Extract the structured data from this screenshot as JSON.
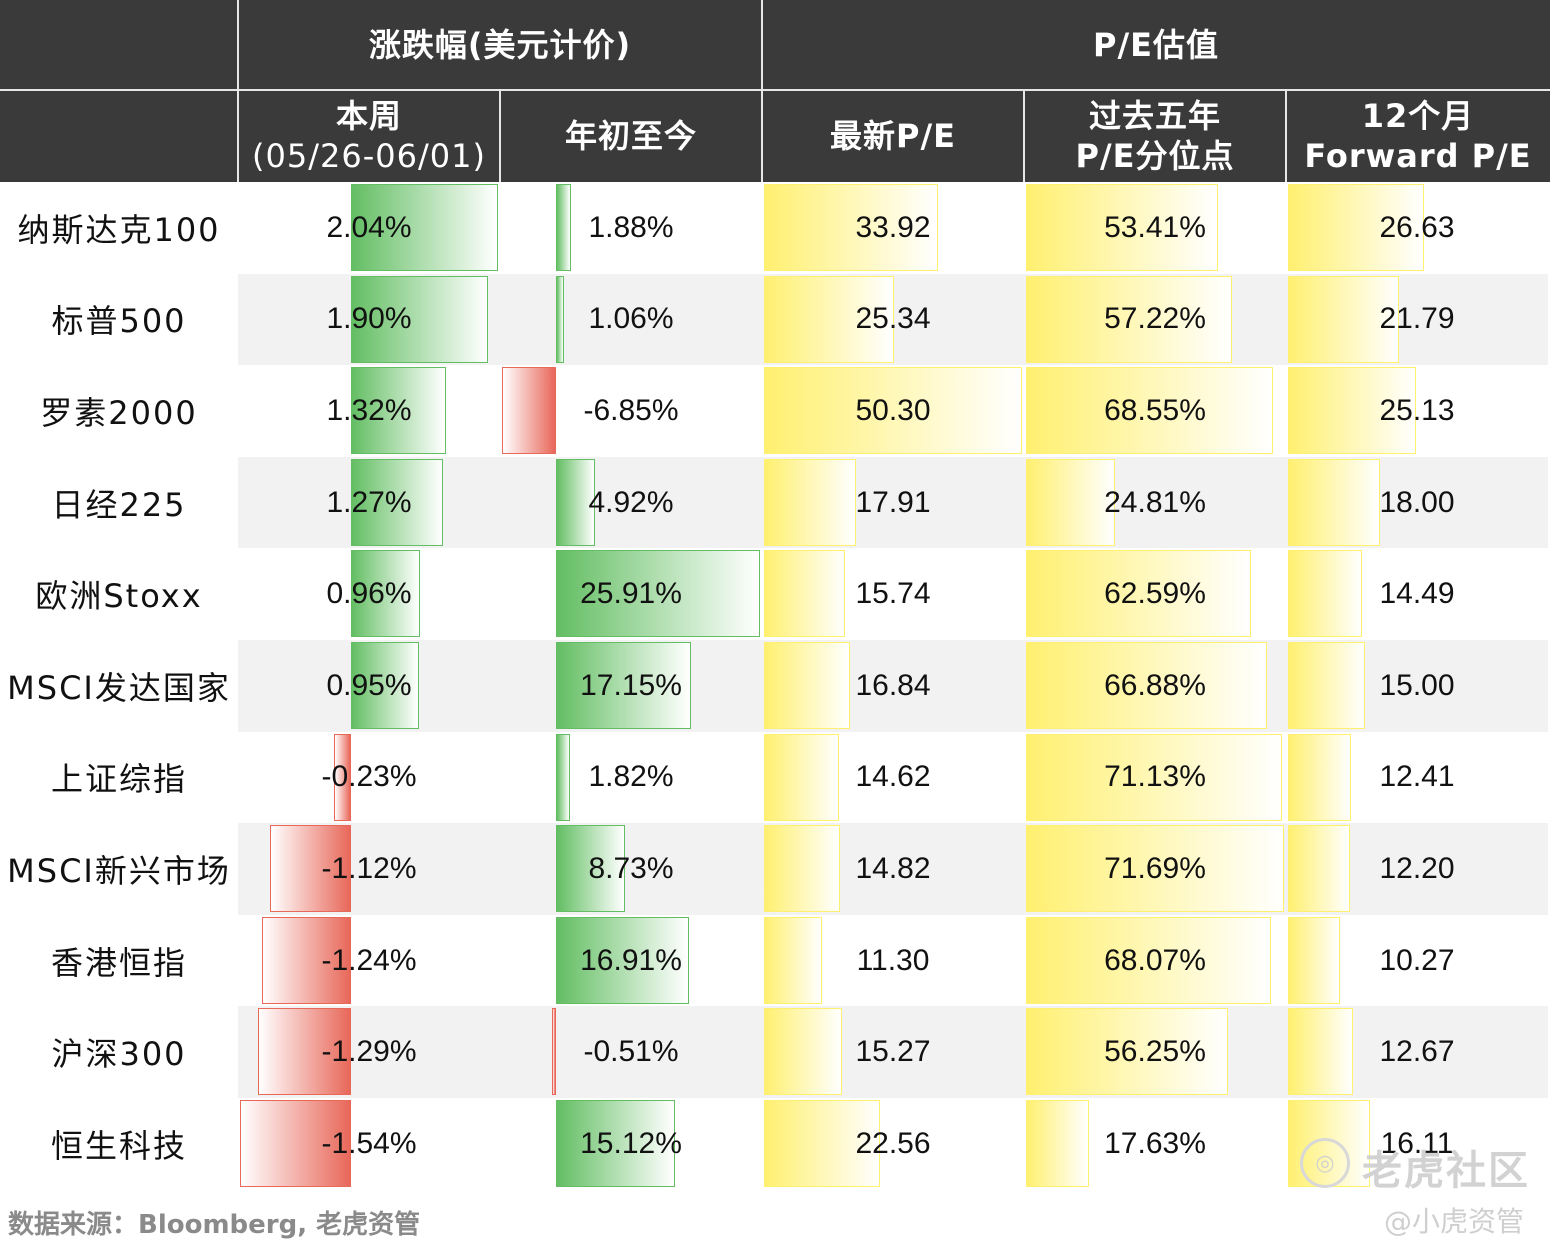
{
  "headers": {
    "group_change": "涨跌幅(美元计价)",
    "group_pe": "P/E估值",
    "week_line1": "本周",
    "week_line2": "(05/26-06/01)",
    "ytd": "年初至今",
    "latest_pe": "最新P/E",
    "pct_line1": "过去五年",
    "pct_line2": "P/E分位点",
    "fwd_line1": "12个月",
    "fwd_line2": "Forward P/E"
  },
  "chart_data": {
    "type": "table",
    "columns": [
      "本周(05/26-06/01)",
      "年初至今",
      "最新P/E",
      "过去五年P/E分位点",
      "12个月Forward P/E"
    ],
    "rows": [
      {
        "name": "纳斯达克100",
        "week": 2.04,
        "ytd": 1.88,
        "pe": 33.92,
        "pct": 53.41,
        "fwd": 26.63
      },
      {
        "name": "标普500",
        "week": 1.9,
        "ytd": 1.06,
        "pe": 25.34,
        "pct": 57.22,
        "fwd": 21.79
      },
      {
        "name": "罗素2000",
        "week": 1.32,
        "ytd": -6.85,
        "pe": 50.3,
        "pct": 68.55,
        "fwd": 25.13
      },
      {
        "name": "日经225",
        "week": 1.27,
        "ytd": 4.92,
        "pe": 17.91,
        "pct": 24.81,
        "fwd": 18.0
      },
      {
        "name": "欧洲Stoxx",
        "week": 0.96,
        "ytd": 25.91,
        "pe": 15.74,
        "pct": 62.59,
        "fwd": 14.49
      },
      {
        "name": "MSCI发达国家",
        "week": 0.95,
        "ytd": 17.15,
        "pe": 16.84,
        "pct": 66.88,
        "fwd": 15.0
      },
      {
        "name": "上证综指",
        "week": -0.23,
        "ytd": 1.82,
        "pe": 14.62,
        "pct": 71.13,
        "fwd": 12.41
      },
      {
        "name": "MSCI新兴市场",
        "week": -1.12,
        "ytd": 8.73,
        "pe": 14.82,
        "pct": 71.69,
        "fwd": 12.2
      },
      {
        "name": "香港恒指",
        "week": -1.24,
        "ytd": 16.91,
        "pe": 11.3,
        "pct": 68.07,
        "fwd": 10.27
      },
      {
        "name": "沪深300",
        "week": -1.29,
        "ytd": -0.51,
        "pe": 15.27,
        "pct": 56.25,
        "fwd": 12.67
      },
      {
        "name": "恒生科技",
        "week": -1.54,
        "ytd": 15.12,
        "pe": 22.56,
        "pct": 17.63,
        "fwd": 16.11
      }
    ],
    "display": {
      "week": [
        "2.04%",
        "1.90%",
        "1.32%",
        "1.27%",
        "0.96%",
        "0.95%",
        "-0.23%",
        "-1.12%",
        "-1.24%",
        "-1.29%",
        "-1.54%"
      ],
      "ytd": [
        "1.88%",
        "1.06%",
        "-6.85%",
        "4.92%",
        "25.91%",
        "17.15%",
        "1.82%",
        "8.73%",
        "16.91%",
        "-0.51%",
        "15.12%"
      ],
      "pe": [
        "33.92",
        "25.34",
        "50.30",
        "17.91",
        "15.74",
        "16.84",
        "14.62",
        "14.82",
        "11.30",
        "15.27",
        "22.56"
      ],
      "pct": [
        "53.41%",
        "57.22%",
        "68.55%",
        "24.81%",
        "62.59%",
        "66.88%",
        "71.13%",
        "71.69%",
        "68.07%",
        "56.25%",
        "17.63%"
      ],
      "fwd": [
        "26.63",
        "21.79",
        "25.13",
        "18.00",
        "14.49",
        "15.00",
        "12.41",
        "12.20",
        "10.27",
        "12.67",
        "16.11"
      ]
    },
    "colors": {
      "positive": "#63be63",
      "negative": "#e8685a",
      "pe": "#fff070",
      "header": "#3a3a3a"
    }
  },
  "footer": "数据来源：Bloomberg, 老虎资管",
  "watermark": {
    "main": "老虎社区",
    "sub": "@小虎资管"
  }
}
